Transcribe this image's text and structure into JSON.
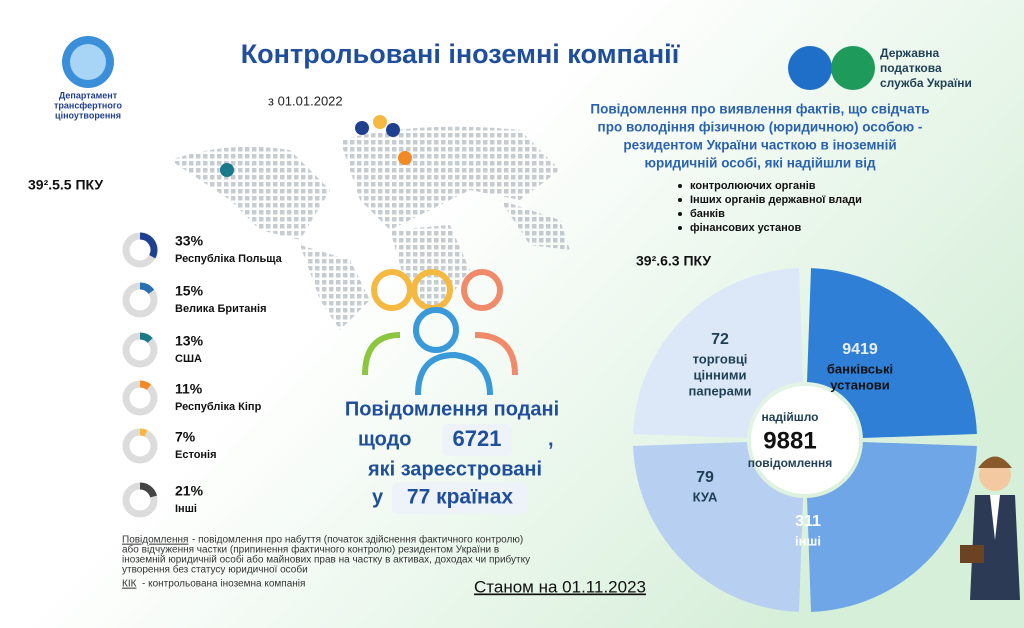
{
  "header": {
    "title": "Контрольовані іноземні компанії",
    "department": [
      "Департамент",
      "трансфертного",
      "ціноутворення"
    ],
    "agency": [
      "Державна",
      "податкова",
      "служба України"
    ]
  },
  "date_from": "з 01.01.2022",
  "left_section": {
    "code": "39².5.5 ПКУ",
    "countries": [
      {
        "value": 33,
        "value_label": "33%",
        "name": "Республіка Польща",
        "color": "#1f3f8f"
      },
      {
        "value": 15,
        "value_label": "15%",
        "name": "Велика Британія",
        "color": "#2a6fb0"
      },
      {
        "value": 13,
        "value_label": "13%",
        "name": "США",
        "color": "#1b7a8a"
      },
      {
        "value": 11,
        "value_label": "11%",
        "name": "Республіка Кіпр",
        "color": "#f08a24"
      },
      {
        "value": 7,
        "value_label": "7%",
        "name": "Естонія",
        "color": "#f5b942"
      },
      {
        "value": 21,
        "value_label": "21%",
        "name": "Інші",
        "color": "#444444"
      }
    ]
  },
  "center": {
    "line1": "Повідомлення подані",
    "prefix": "щодо",
    "count": "6721",
    "comma": ",",
    "line3": "які зареєстровані",
    "in": "у",
    "countries": "77 країнах"
  },
  "right_text": {
    "heading": [
      "Повідомлення про виявлення фактів, що свідчать",
      "про володіння фізичною (юридичною) особою -",
      "резидентом України часткою в іноземній",
      "юридичній особі, які надійшли від"
    ],
    "bullets": [
      "контролюючих органів",
      "Інших органів державної влади",
      "банків",
      "фінансових установ"
    ]
  },
  "right_section": {
    "code": "39².6.3 ПКУ",
    "center": [
      "надійшло",
      "9881",
      "повідомлення"
    ],
    "segments": [
      {
        "value": "9419",
        "label": [
          "банківські",
          "установи"
        ]
      },
      {
        "value": "72",
        "label": [
          "торговці",
          "цінними",
          "паперами"
        ]
      },
      {
        "value": "79",
        "label": [
          "КУА"
        ]
      },
      {
        "value": "311",
        "label": [
          "інші"
        ]
      }
    ]
  },
  "footnotes": {
    "term1": "Повідомлення",
    "def1": [
      "- повідомлення про набуття (початок здійснення фактичного контролю)",
      "або відчуження частки (припинення фактичного контролю) резидентом України в",
      "іноземній юридичній особі або майнових прав на частку в активах, доходах чи прибутку",
      "утворення без статусу юридичної особи"
    ],
    "term2": "КІК",
    "def2": "- контрольована іноземна компанія"
  },
  "status_date": "Станом на 01.11.2023"
}
